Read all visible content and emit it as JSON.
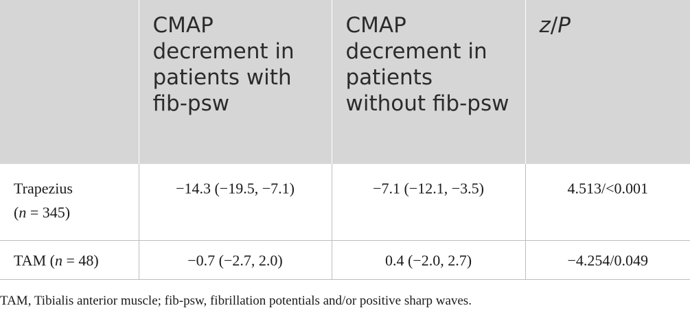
{
  "header": {
    "col1": "",
    "col2": "CMAP decrement in patients with fib-psw",
    "col3": "CMAP decrement in patients without fib-psw",
    "col4_z": "z",
    "col4_sep": "/",
    "col4_p": "P"
  },
  "rows": [
    {
      "muscle": "Trapezius",
      "n_prefix": "(",
      "n_var": "n",
      "n_suffix": " = 345)",
      "with_fib": "−14.3 (−19.5, −7.1)",
      "without_fib": "−7.1 (−12.1, −3.5)",
      "zp": "4.513/<0.001"
    },
    {
      "muscle": "TAM (",
      "n_var": "n",
      "n_suffix": " = 48)",
      "with_fib": "−0.7 (−2.7, 2.0)",
      "without_fib": "0.4 (−2.0, 2.7)",
      "zp": "−4.254/0.049"
    }
  ],
  "footnote": "TAM, Tibialis anterior muscle; fib-psw, fibrillation potentials and/or positive sharp waves."
}
